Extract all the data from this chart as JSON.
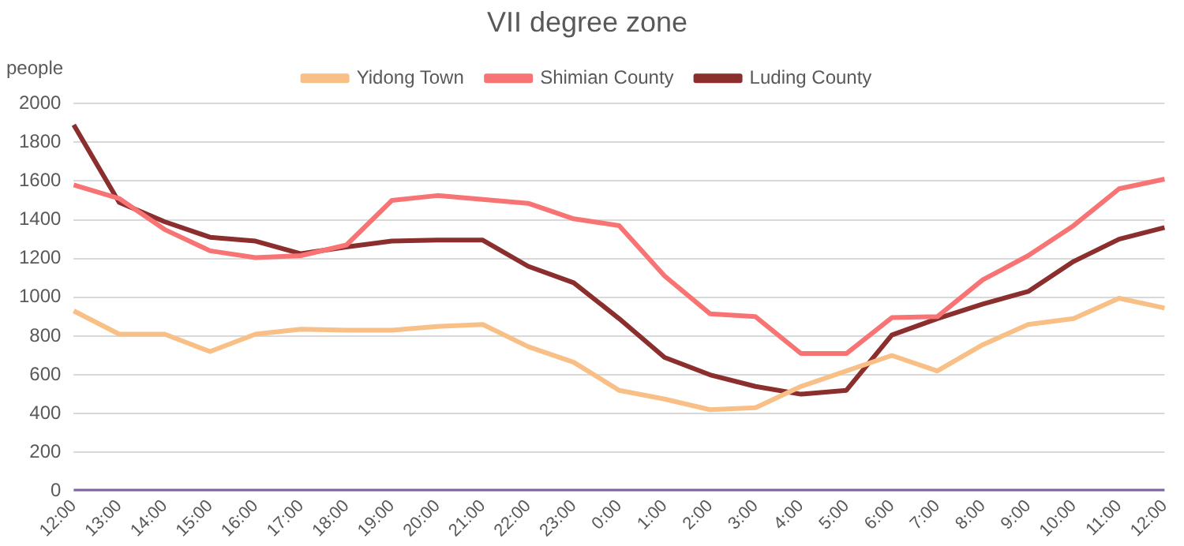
{
  "chart_data": {
    "type": "line",
    "title": "VII degree zone",
    "ylabel": "people",
    "categories": [
      "12:00",
      "13:00",
      "14:00",
      "15:00",
      "16:00",
      "17:00",
      "18:00",
      "19:00",
      "20:00",
      "21:00",
      "22:00",
      "23:00",
      "0:00",
      "1:00",
      "2:00",
      "3:00",
      "4:00",
      "5:00",
      "6:00",
      "7:00",
      "8:00",
      "9:00",
      "10:00",
      "11:00",
      "12:00"
    ],
    "series": [
      {
        "name": "Yidong Town",
        "color": "#f8bf87",
        "values": [
          930,
          810,
          810,
          720,
          810,
          835,
          830,
          830,
          850,
          860,
          745,
          665,
          520,
          475,
          420,
          430,
          540,
          620,
          700,
          620,
          755,
          860,
          890,
          995,
          945
        ]
      },
      {
        "name": "Shimian County",
        "color": "#f87474",
        "values": [
          1580,
          1510,
          1350,
          1240,
          1205,
          1215,
          1270,
          1500,
          1525,
          1505,
          1485,
          1405,
          1370,
          1110,
          915,
          900,
          710,
          710,
          895,
          900,
          1090,
          1215,
          1370,
          1560,
          1610
        ]
      },
      {
        "name": "Luding County",
        "color": "#8b2e2e",
        "values": [
          1890,
          1490,
          1390,
          1310,
          1290,
          1225,
          1260,
          1290,
          1295,
          1295,
          1160,
          1075,
          890,
          690,
          600,
          540,
          500,
          520,
          805,
          890,
          965,
          1030,
          1185,
          1300,
          1360
        ]
      },
      {
        "color": "#8064a2",
        "values": [
          0,
          0,
          0,
          0,
          0,
          0,
          0,
          0,
          0,
          0,
          0,
          0,
          0,
          0,
          0,
          0,
          0,
          0,
          0,
          0,
          0,
          0,
          0,
          0,
          0
        ]
      }
    ],
    "ylim": [
      0,
      2000
    ],
    "yticks": [
      0,
      200,
      400,
      600,
      800,
      1000,
      1200,
      1400,
      1600,
      1800,
      2000
    ],
    "grid": "y",
    "legend": "top",
    "marker": "none"
  }
}
